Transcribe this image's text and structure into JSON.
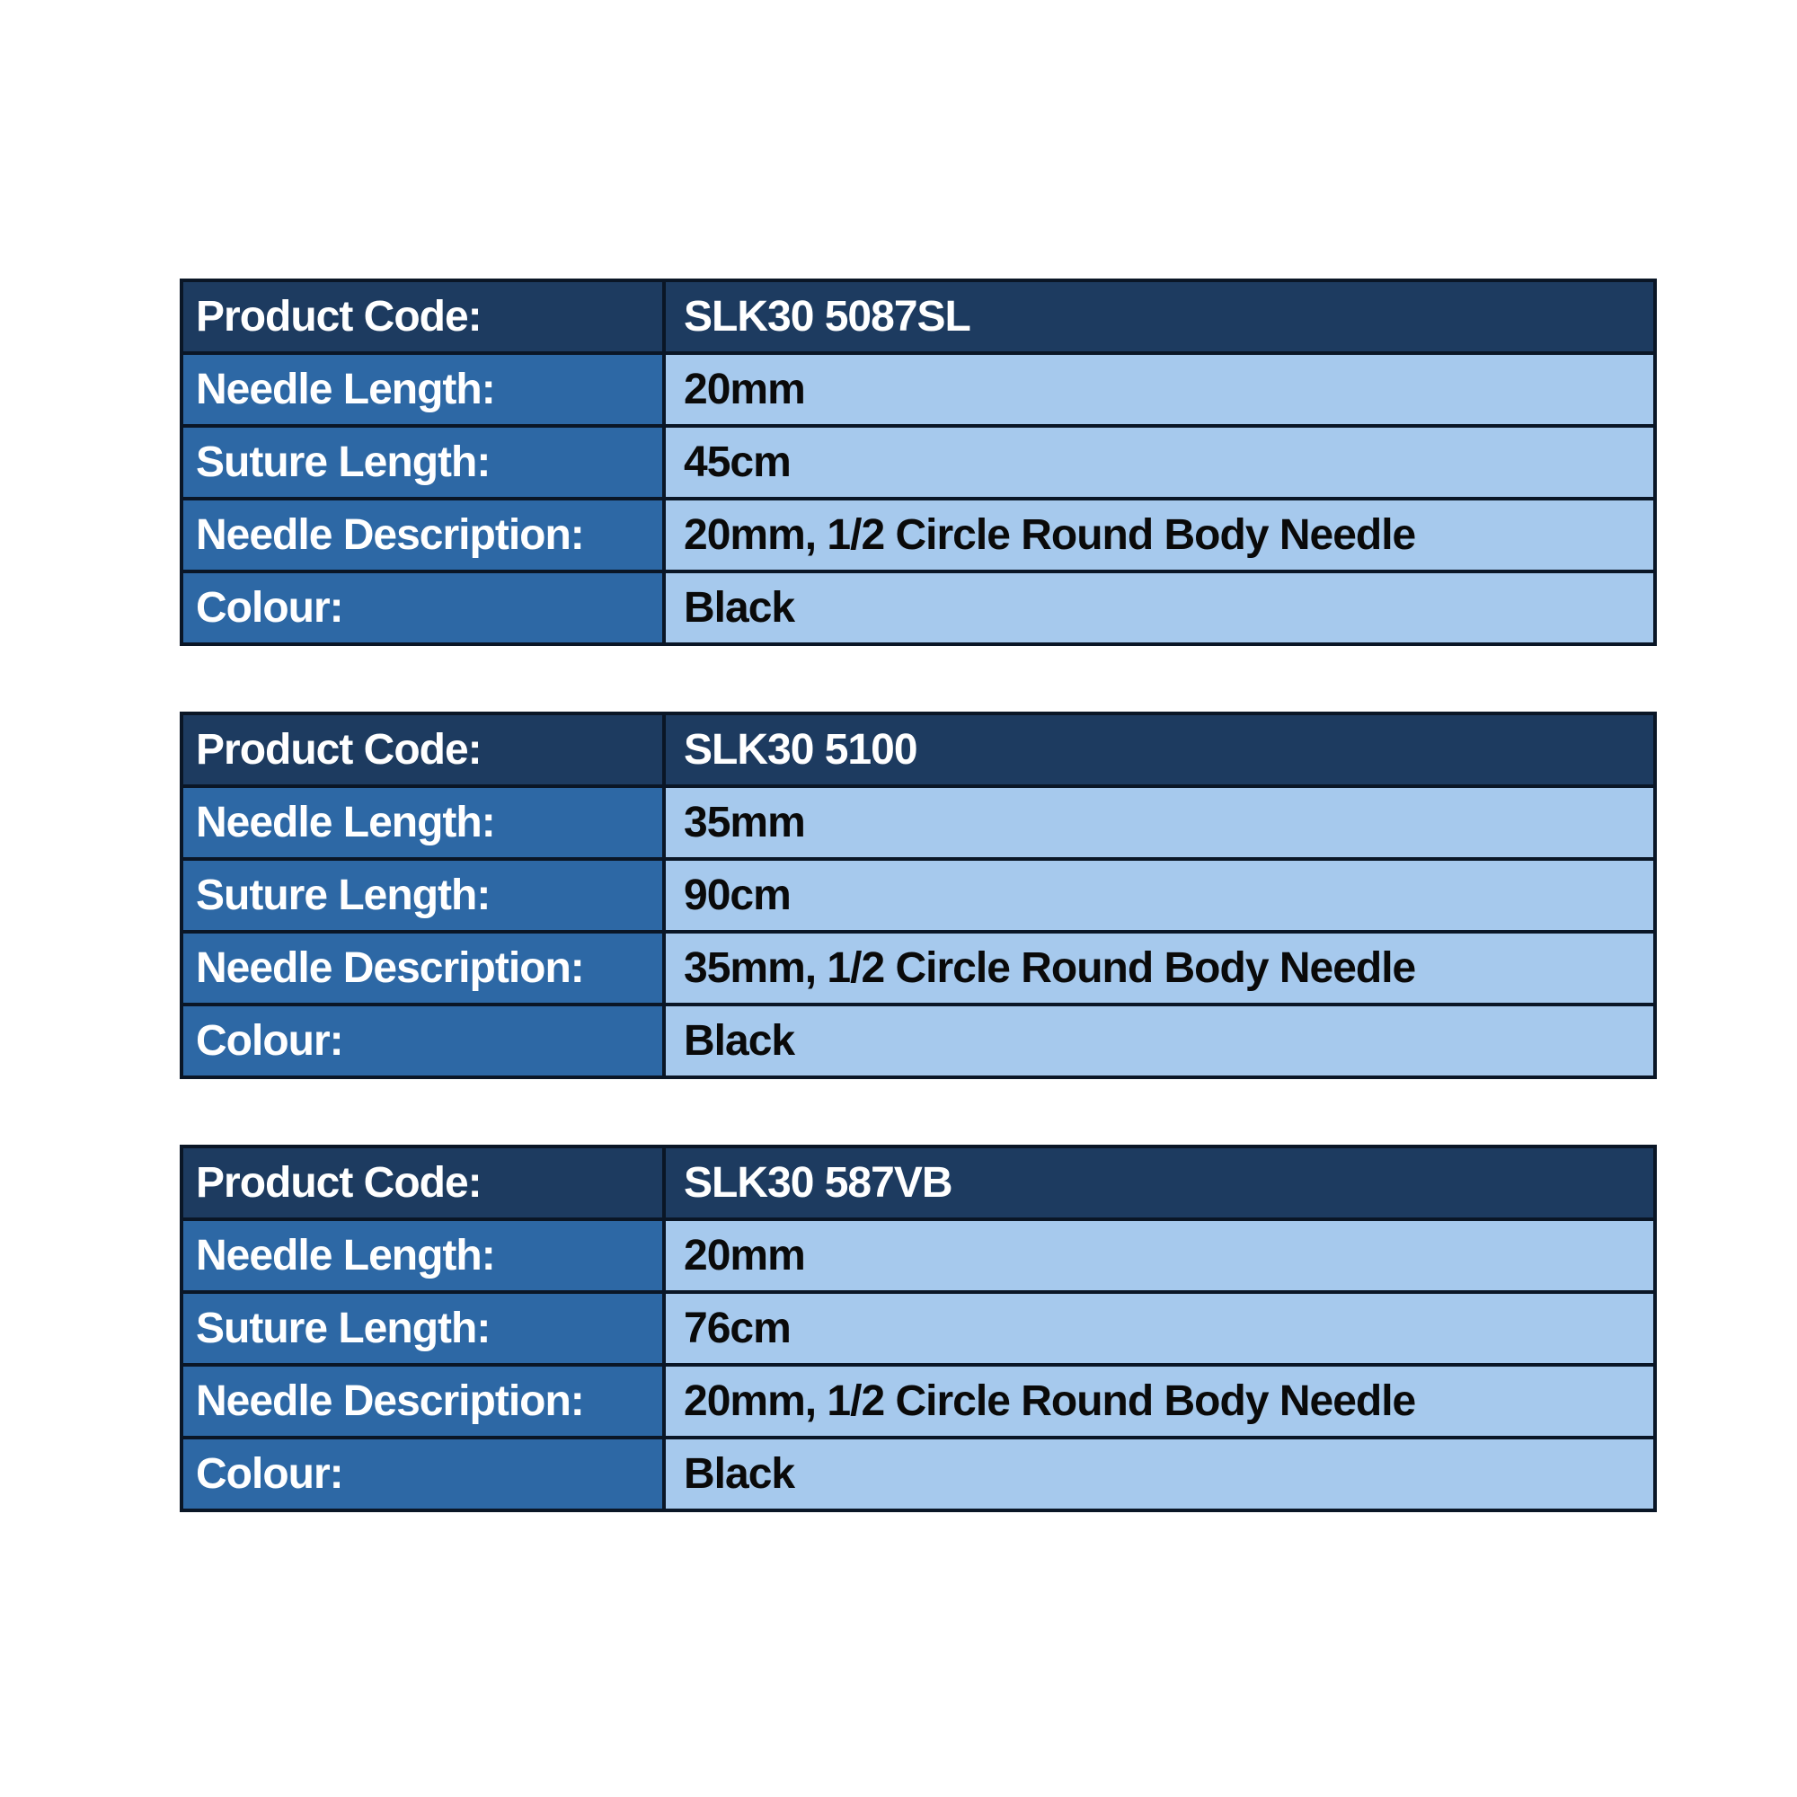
{
  "page": {
    "background_color": "#ffffff"
  },
  "theme": {
    "header_row_bg": "#1d3b60",
    "label_cell_bg": "#2d68a5",
    "value_cell_bg": "#a6c9ed",
    "border_color": "#0a1626",
    "label_text_color": "#ffffff",
    "value_text_color": "#0a0a0a"
  },
  "tables": [
    {
      "rows": [
        {
          "label": "Product Code:",
          "value": "SLK30 5087SL"
        },
        {
          "label": "Needle Length:",
          "value": "20mm"
        },
        {
          "label": "Suture Length:",
          "value": "45cm"
        },
        {
          "label": "Needle Description:",
          "value": "20mm, 1/2 Circle Round Body Needle"
        },
        {
          "label": "Colour:",
          "value": "Black"
        }
      ]
    },
    {
      "rows": [
        {
          "label": "Product Code:",
          "value": "SLK30 5100"
        },
        {
          "label": "Needle Length:",
          "value": "35mm"
        },
        {
          "label": "Suture Length:",
          "value": "90cm"
        },
        {
          "label": "Needle Description:",
          "value": "35mm, 1/2 Circle Round Body Needle"
        },
        {
          "label": "Colour:",
          "value": "Black"
        }
      ]
    },
    {
      "rows": [
        {
          "label": "Product Code:",
          "value": "SLK30 587VB"
        },
        {
          "label": "Needle Length:",
          "value": "20mm"
        },
        {
          "label": "Suture Length:",
          "value": "76cm"
        },
        {
          "label": "Needle Description:",
          "value": "20mm, 1/2 Circle Round Body Needle"
        },
        {
          "label": "Colour:",
          "value": "Black"
        }
      ]
    }
  ]
}
